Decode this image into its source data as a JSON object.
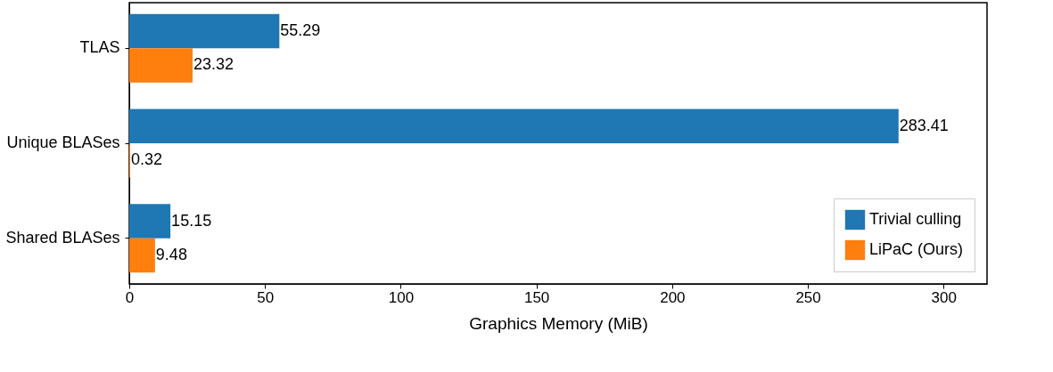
{
  "chart_data": {
    "type": "bar",
    "orientation": "horizontal",
    "xlabel": "Graphics Memory (MiB)",
    "categories": [
      "TLAS",
      "Unique BLASes",
      "Shared BLASes"
    ],
    "series": [
      {
        "name": "Trivial culling",
        "color": "#1f77b4",
        "values": [
          55.29,
          283.41,
          15.15
        ]
      },
      {
        "name": "LiPaC (Ours)",
        "color": "#ff7f0e",
        "values": [
          23.32,
          0.32,
          9.48
        ]
      }
    ],
    "xlim": [
      0,
      316
    ],
    "xticks": [
      0,
      50,
      100,
      150,
      200,
      250,
      300
    ],
    "data_labels": true,
    "legend": "bottom right",
    "grid": false
  }
}
